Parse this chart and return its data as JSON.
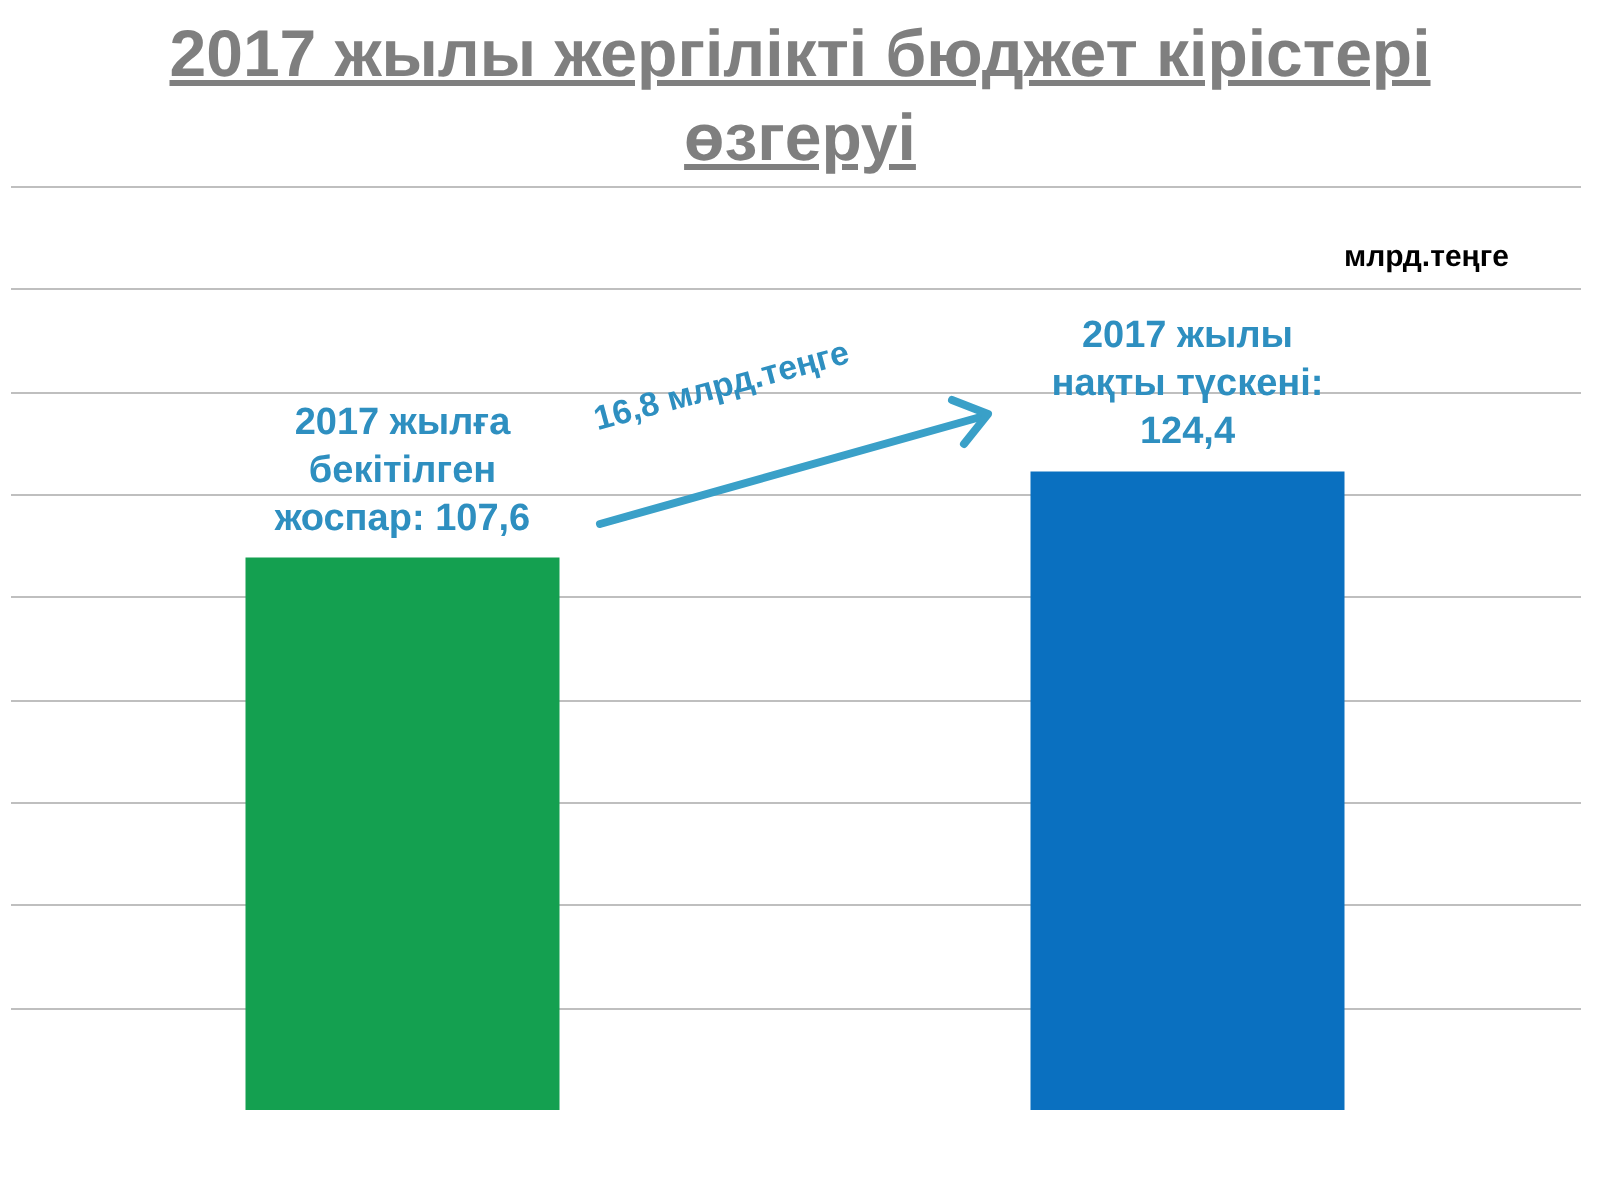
{
  "chart_data": {
    "type": "bar",
    "title": "2017 жылы жергілікті бюджет кірістері өзгеруі",
    "categories": [
      null,
      null
    ],
    "values": [
      107.6,
      124.4
    ],
    "colors": [
      "#14a050",
      "#0a70c0"
    ],
    "value_labels": [
      "2017 жылға бекітілген жоспар: 107,6",
      "2017 жылы нақты түскені: 124,4"
    ],
    "annotations": [
      "16,8 млрд.теңге",
      "млрд.теңге"
    ],
    "grid": "y",
    "tick_labels": false
  }
}
